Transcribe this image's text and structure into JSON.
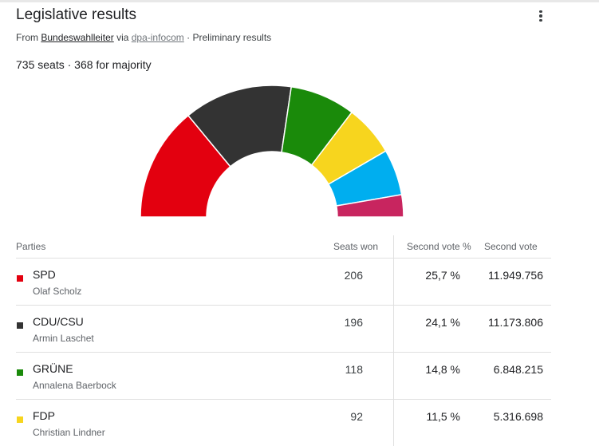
{
  "header": {
    "title": "Legislative results",
    "source_prefix": "From ",
    "source_name": "Bundeswahlleiter",
    "source_via": " via ",
    "source_via_name": "dpa-infocom",
    "source_status": " · Preliminary results",
    "summary": "735 seats · 368 for majority",
    "menu_icon": "more-vert-icon"
  },
  "table": {
    "headers": {
      "parties": "Parties",
      "seats": "Seats won",
      "pct": "Second vote %",
      "votes": "Second vote"
    },
    "rows": [
      {
        "party": "SPD",
        "leader": "Olaf Scholz",
        "seats": "206",
        "pct": "25,7 %",
        "votes": "11.949.756",
        "color": "#e3000f"
      },
      {
        "party": "CDU/CSU",
        "leader": "Armin Laschet",
        "seats": "196",
        "pct": "24,1 %",
        "votes": "11.173.806",
        "color": "#333333"
      },
      {
        "party": "GRÜNE",
        "leader": "Annalena Baerbock",
        "seats": "118",
        "pct": "14,8 %",
        "votes": "6.848.215",
        "color": "#1a8a0a"
      },
      {
        "party": "FDP",
        "leader": "Christian Lindner",
        "seats": "92",
        "pct": "11,5 %",
        "votes": "5.316.698",
        "color": "#f7d51e"
      }
    ]
  },
  "chart_data": {
    "type": "pie",
    "subtype": "half-donut",
    "total": 735,
    "segments": [
      {
        "name": "SPD",
        "value": 206,
        "color": "#e3000f"
      },
      {
        "name": "CDU/CSU",
        "value": 196,
        "color": "#333333"
      },
      {
        "name": "GRÜNE",
        "value": 118,
        "color": "#1a8a0a"
      },
      {
        "name": "FDP",
        "value": 92,
        "color": "#f7d51e"
      },
      {
        "name": "",
        "value": 83,
        "color": "#00aeef"
      },
      {
        "name": "",
        "value": 40,
        "color": "#c8255f"
      }
    ]
  }
}
